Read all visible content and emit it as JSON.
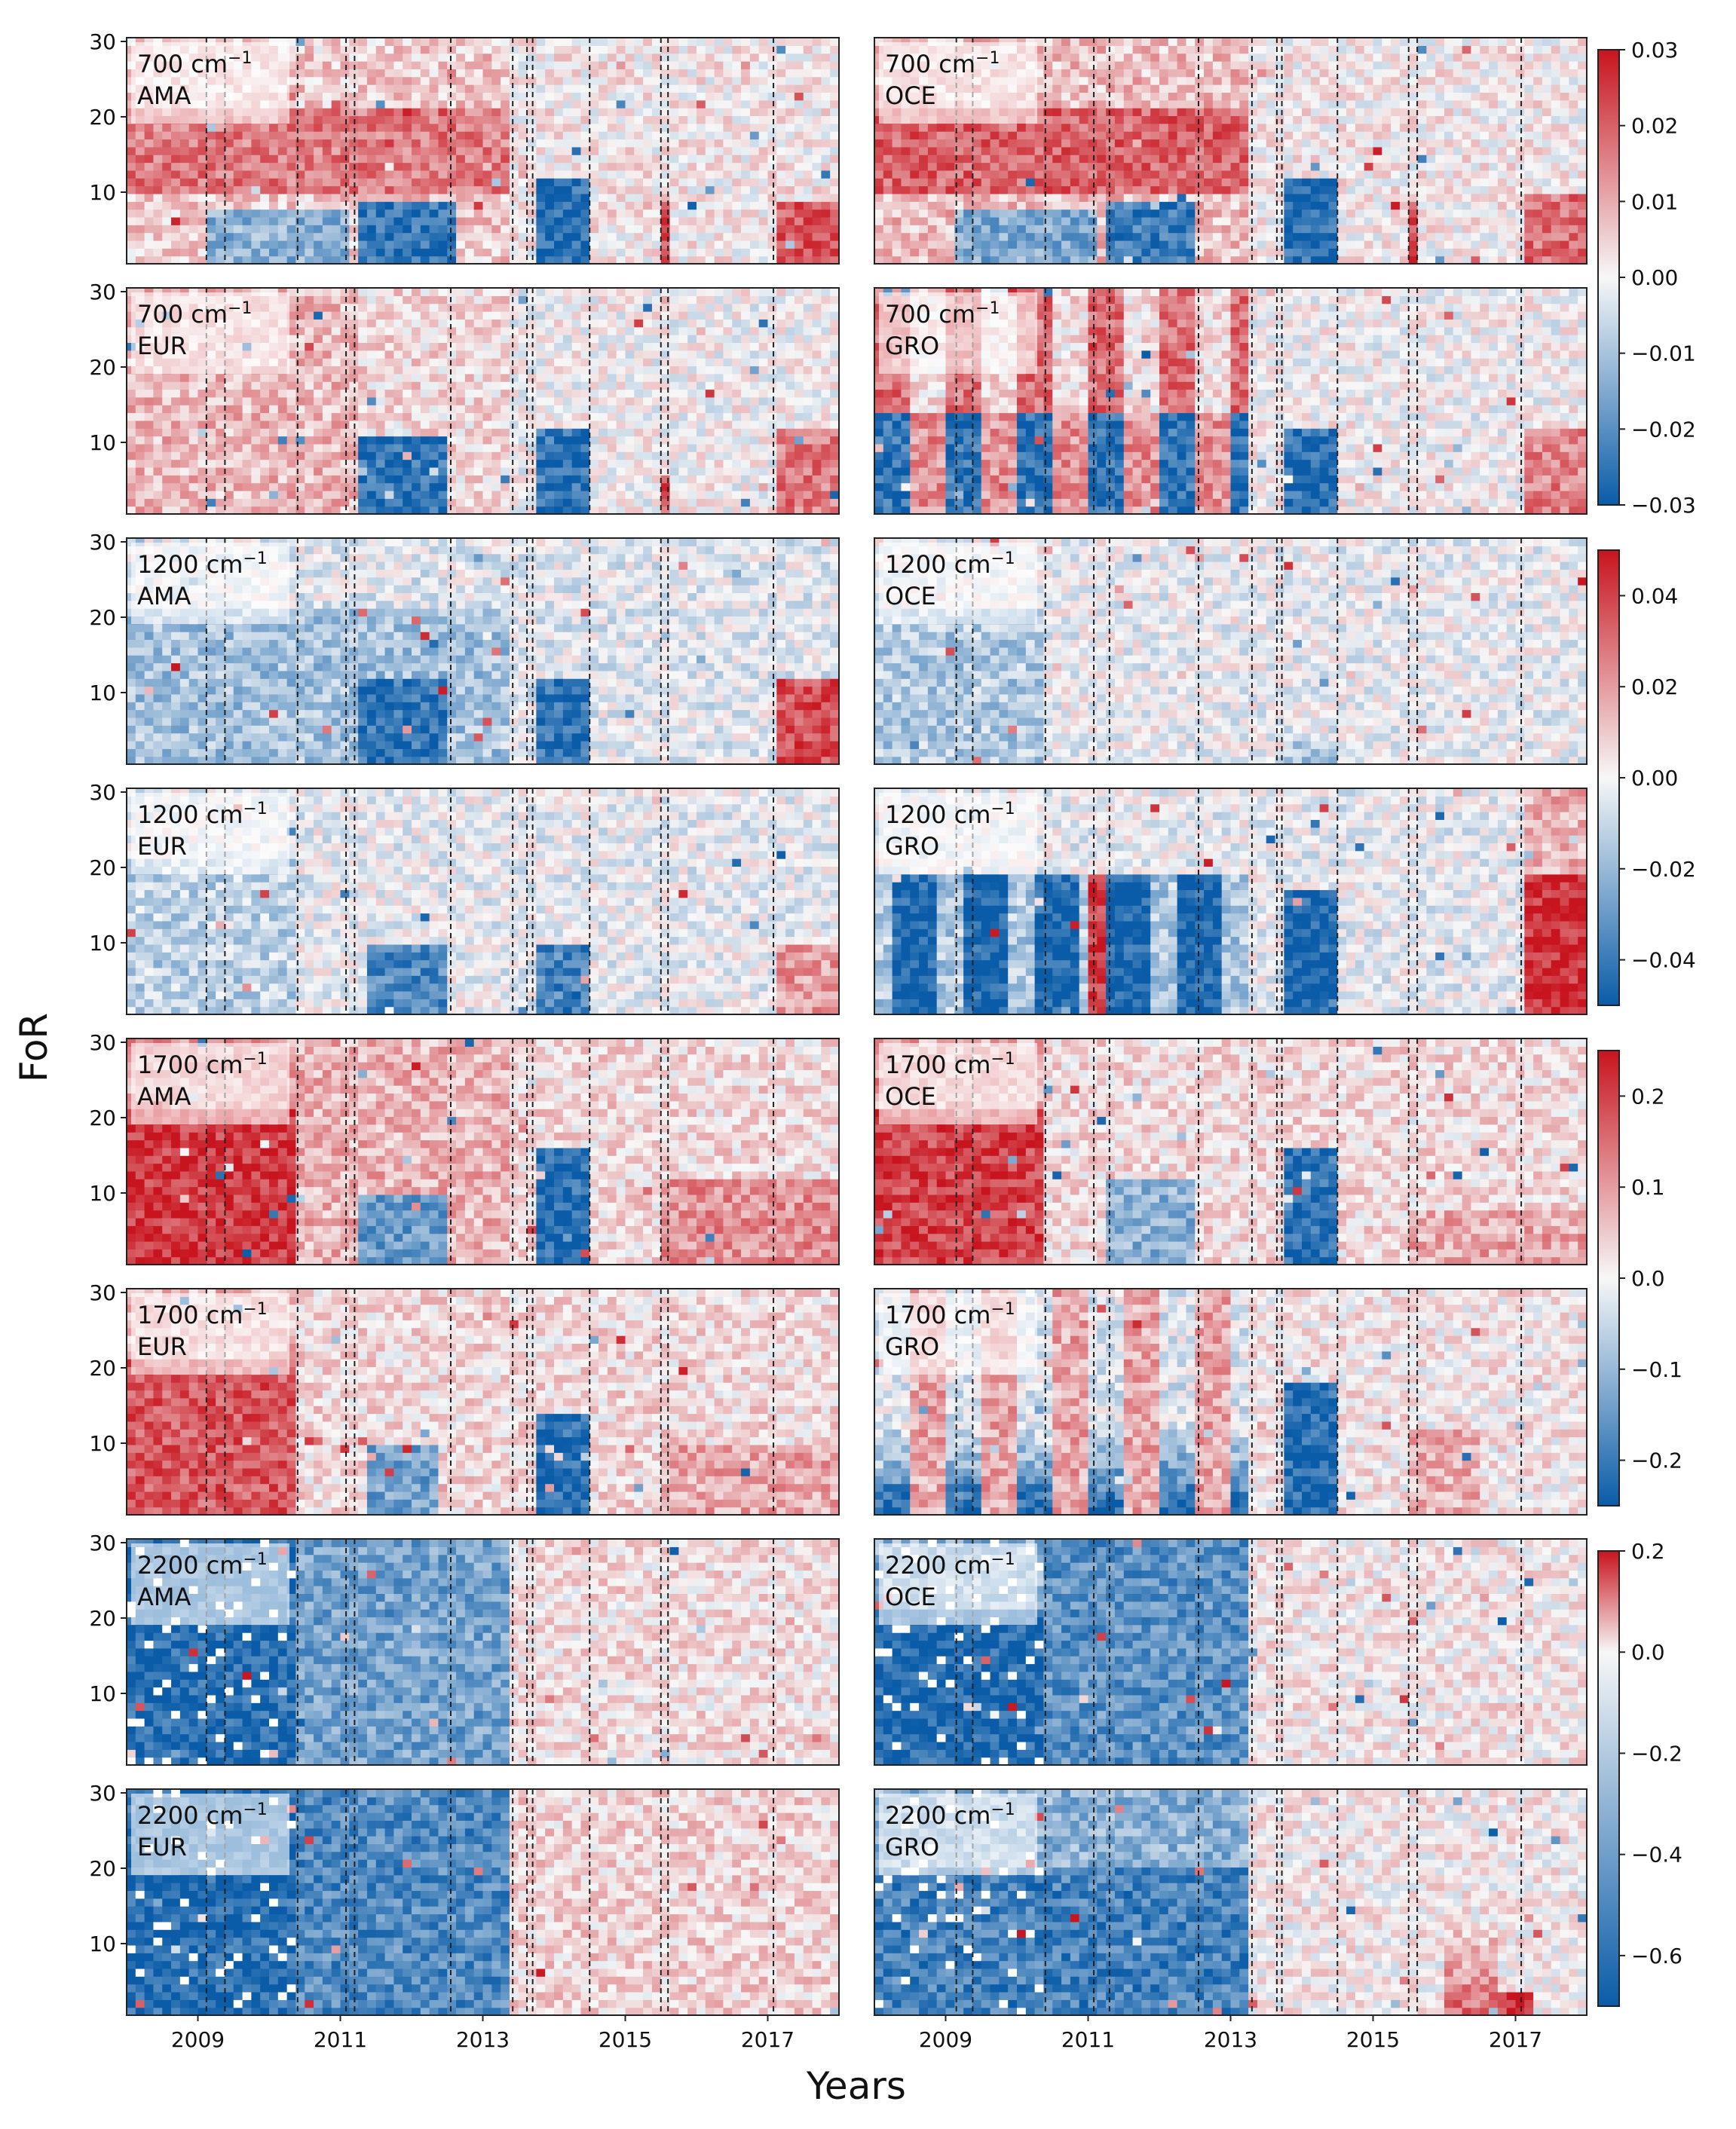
{
  "figure": {
    "ylabel": "FoR",
    "xlabel": "Years"
  },
  "chart_data": {
    "type": "heatmap",
    "x_ticks": [
      "2009",
      "2011",
      "2013",
      "2015",
      "2017"
    ],
    "x_tick_values": [
      2009,
      2011,
      2013,
      2015,
      2017
    ],
    "x_range": [
      2008.0,
      2018.0
    ],
    "y_ticks": [
      "10",
      "20",
      "30"
    ],
    "y_tick_values": [
      10,
      20,
      30
    ],
    "y_range": [
      1,
      30
    ],
    "colormap": "RdBu_r",
    "colors": {
      "positive": "#c8141e",
      "neutral": "#f7f7f7",
      "negative": "#0a5ca8",
      "missing": "#ffffff"
    },
    "vlines_left": [
      2009.12,
      2009.38,
      2010.4,
      2011.08,
      2011.2,
      2012.55,
      2013.42,
      2013.62,
      2013.7,
      2014.5,
      2015.5,
      2015.6,
      2017.08
    ],
    "vlines_right": [
      2009.15,
      2009.38,
      2010.4,
      2011.08,
      2011.3,
      2012.55,
      2013.3,
      2013.65,
      2013.72,
      2014.5,
      2015.5,
      2015.62,
      2017.08
    ],
    "colorbars": [
      {
        "band": "700 cm⁻¹",
        "ticks": [
          "0.03",
          "0.02",
          "0.01",
          "0.00",
          "−0.01",
          "−0.02",
          "−0.03"
        ],
        "tick_values": [
          0.03,
          0.02,
          0.01,
          0.0,
          -0.01,
          -0.02,
          -0.03
        ],
        "range": [
          -0.03,
          0.03
        ]
      },
      {
        "band": "1200 cm⁻¹",
        "ticks": [
          "0.04",
          "0.02",
          "0.00",
          "−0.02",
          "−0.04"
        ],
        "tick_values": [
          0.04,
          0.02,
          0.0,
          -0.02,
          -0.04
        ],
        "range": [
          -0.05,
          0.05
        ]
      },
      {
        "band": "1700 cm⁻¹",
        "ticks": [
          "0.2",
          "0.1",
          "0.0",
          "−0.1",
          "−0.2"
        ],
        "tick_values": [
          0.2,
          0.1,
          0.0,
          -0.1,
          -0.2
        ],
        "range": [
          -0.25,
          0.25
        ]
      },
      {
        "band": "2200 cm⁻¹",
        "ticks": [
          "0.2",
          "0.0",
          "−0.2",
          "−0.4",
          "−0.6"
        ],
        "tick_values": [
          0.2,
          0.0,
          -0.2,
          -0.4,
          -0.6
        ],
        "range": [
          -0.7,
          0.2
        ]
      }
    ],
    "panels": [
      {
        "row": 0,
        "col": 0,
        "wavenumber": "700",
        "unit": "cm",
        "exponent": "−1",
        "region": "AMA",
        "scale": 0
      },
      {
        "row": 0,
        "col": 1,
        "wavenumber": "700",
        "unit": "cm",
        "exponent": "−1",
        "region": "OCE",
        "scale": 0
      },
      {
        "row": 1,
        "col": 0,
        "wavenumber": "700",
        "unit": "cm",
        "exponent": "−1",
        "region": "EUR",
        "scale": 0
      },
      {
        "row": 1,
        "col": 1,
        "wavenumber": "700",
        "unit": "cm",
        "exponent": "−1",
        "region": "GRO",
        "scale": 0
      },
      {
        "row": 2,
        "col": 0,
        "wavenumber": "1200",
        "unit": "cm",
        "exponent": "−1",
        "region": "AMA",
        "scale": 1
      },
      {
        "row": 2,
        "col": 1,
        "wavenumber": "1200",
        "unit": "cm",
        "exponent": "−1",
        "region": "OCE",
        "scale": 1
      },
      {
        "row": 3,
        "col": 0,
        "wavenumber": "1200",
        "unit": "cm",
        "exponent": "−1",
        "region": "EUR",
        "scale": 1
      },
      {
        "row": 3,
        "col": 1,
        "wavenumber": "1200",
        "unit": "cm",
        "exponent": "−1",
        "region": "GRO",
        "scale": 1
      },
      {
        "row": 4,
        "col": 0,
        "wavenumber": "1700",
        "unit": "cm",
        "exponent": "−1",
        "region": "AMA",
        "scale": 2
      },
      {
        "row": 4,
        "col": 1,
        "wavenumber": "1700",
        "unit": "cm",
        "exponent": "−1",
        "region": "OCE",
        "scale": 2
      },
      {
        "row": 5,
        "col": 0,
        "wavenumber": "1700",
        "unit": "cm",
        "exponent": "−1",
        "region": "EUR",
        "scale": 2
      },
      {
        "row": 5,
        "col": 1,
        "wavenumber": "1700",
        "unit": "cm",
        "exponent": "−1",
        "region": "GRO",
        "scale": 2
      },
      {
        "row": 6,
        "col": 0,
        "wavenumber": "2200",
        "unit": "cm",
        "exponent": "−1",
        "region": "AMA",
        "scale": 3
      },
      {
        "row": 6,
        "col": 1,
        "wavenumber": "2200",
        "unit": "cm",
        "exponent": "−1",
        "region": "OCE",
        "scale": 3
      },
      {
        "row": 7,
        "col": 0,
        "wavenumber": "2200",
        "unit": "cm",
        "exponent": "−1",
        "region": "EUR",
        "scale": 3
      },
      {
        "row": 7,
        "col": 1,
        "wavenumber": "2200",
        "unit": "cm",
        "exponent": "−1",
        "region": "GRO",
        "scale": 3
      }
    ]
  }
}
